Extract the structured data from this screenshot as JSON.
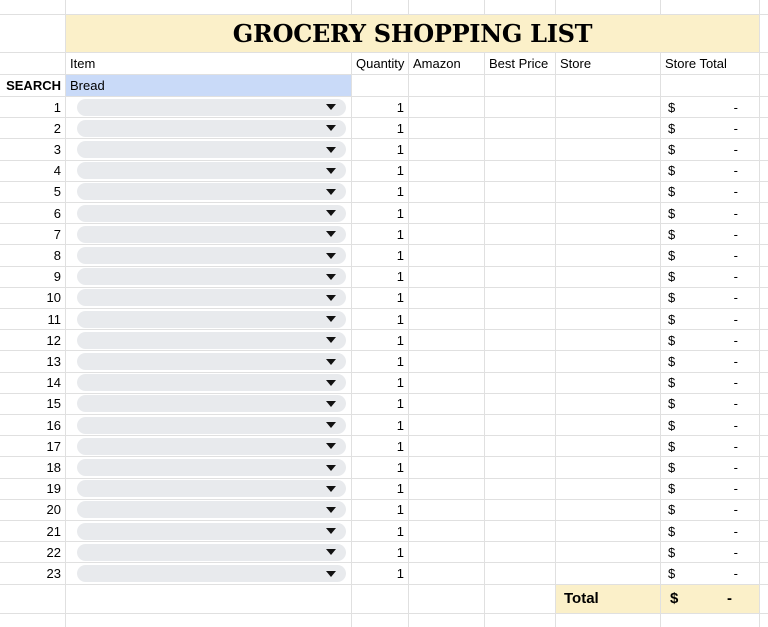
{
  "title": "GROCERY SHOPPING LIST",
  "header": {
    "item": "Item",
    "quantity": "Quantity",
    "amazon": "Amazon",
    "best_price": "Best Price",
    "store": "Store",
    "store_total": "Store Total"
  },
  "search": {
    "label": "SEARCH",
    "item_value": "Bread"
  },
  "rows": [
    {
      "num": "1",
      "quantity": "1",
      "currency": "$",
      "amount": "-"
    },
    {
      "num": "2",
      "quantity": "1",
      "currency": "$",
      "amount": "-"
    },
    {
      "num": "3",
      "quantity": "1",
      "currency": "$",
      "amount": "-"
    },
    {
      "num": "4",
      "quantity": "1",
      "currency": "$",
      "amount": "-"
    },
    {
      "num": "5",
      "quantity": "1",
      "currency": "$",
      "amount": "-"
    },
    {
      "num": "6",
      "quantity": "1",
      "currency": "$",
      "amount": "-"
    },
    {
      "num": "7",
      "quantity": "1",
      "currency": "$",
      "amount": "-"
    },
    {
      "num": "8",
      "quantity": "1",
      "currency": "$",
      "amount": "-"
    },
    {
      "num": "9",
      "quantity": "1",
      "currency": "$",
      "amount": "-"
    },
    {
      "num": "10",
      "quantity": "1",
      "currency": "$",
      "amount": "-"
    },
    {
      "num": "11",
      "quantity": "1",
      "currency": "$",
      "amount": "-"
    },
    {
      "num": "12",
      "quantity": "1",
      "currency": "$",
      "amount": "-"
    },
    {
      "num": "13",
      "quantity": "1",
      "currency": "$",
      "amount": "-"
    },
    {
      "num": "14",
      "quantity": "1",
      "currency": "$",
      "amount": "-"
    },
    {
      "num": "15",
      "quantity": "1",
      "currency": "$",
      "amount": "-"
    },
    {
      "num": "16",
      "quantity": "1",
      "currency": "$",
      "amount": "-"
    },
    {
      "num": "17",
      "quantity": "1",
      "currency": "$",
      "amount": "-"
    },
    {
      "num": "18",
      "quantity": "1",
      "currency": "$",
      "amount": "-"
    },
    {
      "num": "19",
      "quantity": "1",
      "currency": "$",
      "amount": "-"
    },
    {
      "num": "20",
      "quantity": "1",
      "currency": "$",
      "amount": "-"
    },
    {
      "num": "21",
      "quantity": "1",
      "currency": "$",
      "amount": "-"
    },
    {
      "num": "22",
      "quantity": "1",
      "currency": "$",
      "amount": "-"
    },
    {
      "num": "23",
      "quantity": "1",
      "currency": "$",
      "amount": "-"
    }
  ],
  "total_row": {
    "label": "Total",
    "currency": "$",
    "amount": "-"
  },
  "colors": {
    "highlight_yellow": "#fbf0c9",
    "search_blue": "#c9daf8",
    "dropdown_gray": "#e8eaed",
    "gridline": "#e0e0e0",
    "dropdown_arrow": "#111111",
    "text": "#000000"
  }
}
